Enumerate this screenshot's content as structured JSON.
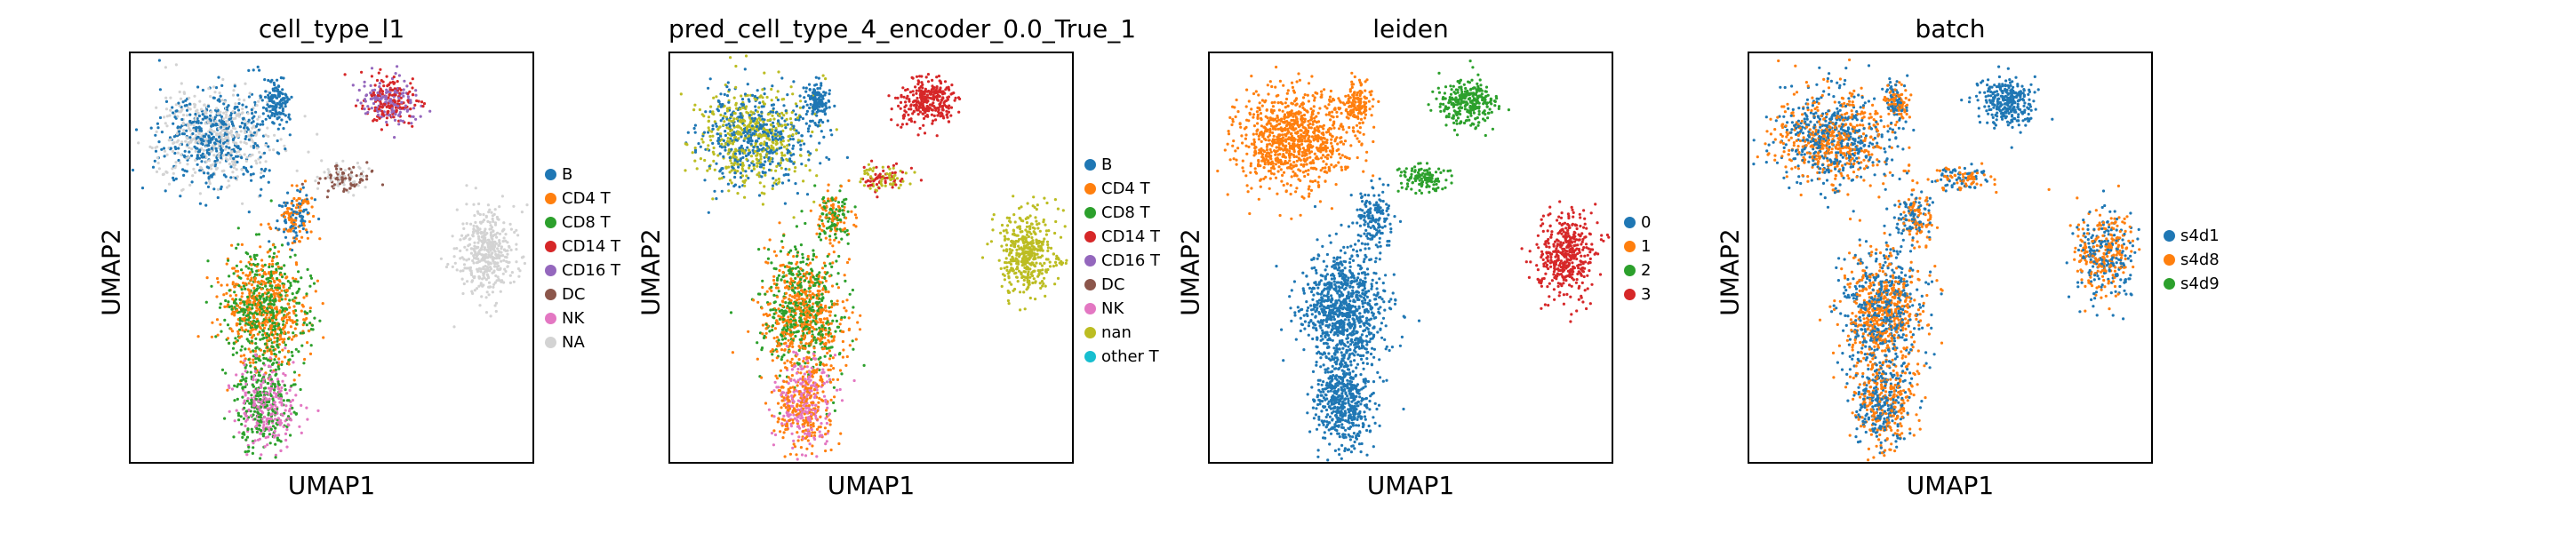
{
  "chart_data": [
    {
      "type": "scatter",
      "title": "cell_type_l1",
      "xlabel": "UMAP1",
      "ylabel": "UMAP2",
      "grid": false,
      "legend_position": "right",
      "legend": [
        {
          "label": "B",
          "color": "#1f77b4"
        },
        {
          "label": "CD4 T",
          "color": "#ff7f0e"
        },
        {
          "label": "CD8 T",
          "color": "#2ca02c"
        },
        {
          "label": "CD14 T",
          "color": "#d62728"
        },
        {
          "label": "CD16 T",
          "color": "#9467bd"
        },
        {
          "label": "DC",
          "color": "#8c564b"
        },
        {
          "label": "NK",
          "color": "#e377c2"
        },
        {
          "label": "NA",
          "color": "#d3d3d3"
        }
      ]
    },
    {
      "type": "scatter",
      "title": "pred_cell_type_4_encoder_0.0_True_1",
      "xlabel": "UMAP1",
      "ylabel": "UMAP2",
      "grid": false,
      "legend_position": "right",
      "legend": [
        {
          "label": "B",
          "color": "#1f77b4"
        },
        {
          "label": "CD4 T",
          "color": "#ff7f0e"
        },
        {
          "label": "CD8 T",
          "color": "#2ca02c"
        },
        {
          "label": "CD14 T",
          "color": "#d62728"
        },
        {
          "label": "CD16 T",
          "color": "#9467bd"
        },
        {
          "label": "DC",
          "color": "#8c564b"
        },
        {
          "label": "NK",
          "color": "#e377c2"
        },
        {
          "label": "nan",
          "color": "#bcbd22"
        },
        {
          "label": "other T",
          "color": "#17becf"
        }
      ]
    },
    {
      "type": "scatter",
      "title": "leiden",
      "xlabel": "UMAP1",
      "ylabel": "UMAP2",
      "grid": false,
      "legend_position": "right",
      "legend": [
        {
          "label": "0",
          "color": "#1f77b4"
        },
        {
          "label": "1",
          "color": "#ff7f0e"
        },
        {
          "label": "2",
          "color": "#2ca02c"
        },
        {
          "label": "3",
          "color": "#d62728"
        }
      ]
    },
    {
      "type": "scatter",
      "title": "batch",
      "xlabel": "UMAP1",
      "ylabel": "UMAP2",
      "grid": false,
      "legend_position": "right",
      "legend": [
        {
          "label": "s4d1",
          "color": "#1f77b4"
        },
        {
          "label": "s4d8",
          "color": "#ff7f0e"
        },
        {
          "label": "s4d9",
          "color": "#2ca02c"
        }
      ]
    }
  ]
}
